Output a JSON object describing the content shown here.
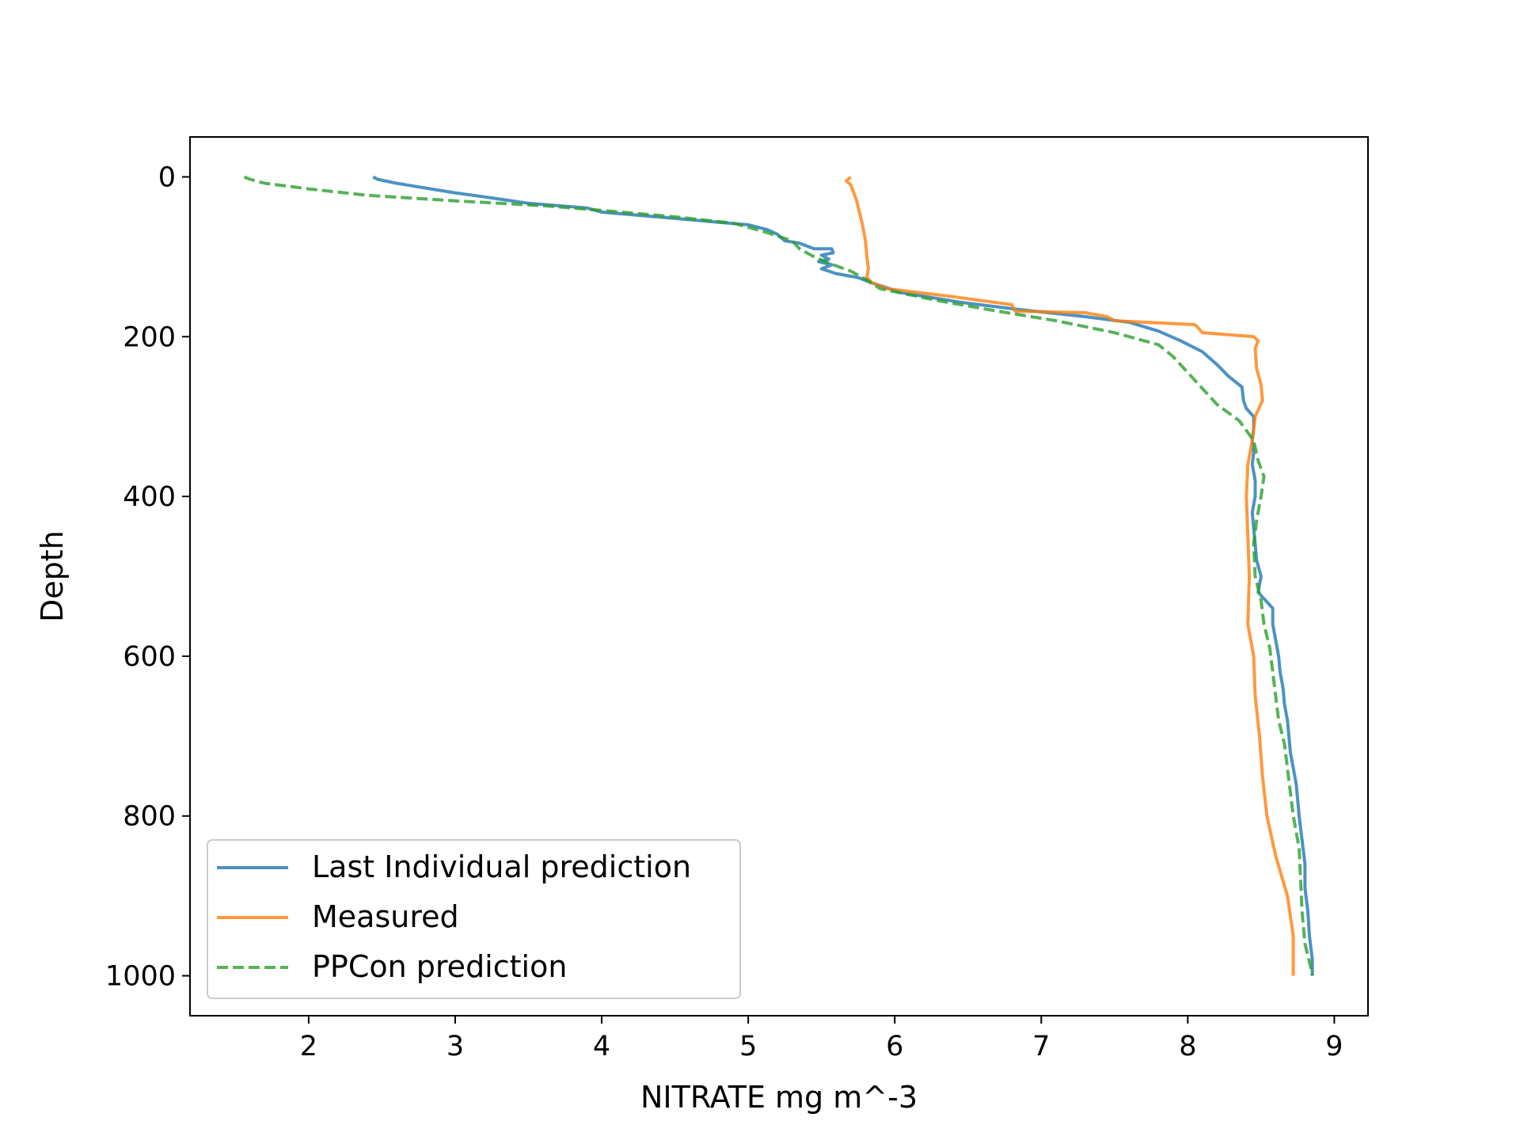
{
  "chart_data": {
    "type": "line",
    "title": "",
    "xlabel": "NITRATE mg m^-3",
    "ylabel": "Depth",
    "xlim": [
      1.19,
      9.23
    ],
    "ylim": [
      1050,
      -50
    ],
    "y_inverted": true,
    "xticks": [
      2,
      3,
      4,
      5,
      6,
      7,
      8,
      9
    ],
    "yticks": [
      0,
      200,
      400,
      600,
      800,
      1000
    ],
    "grid": false,
    "legend_position": "lower left",
    "series": [
      {
        "name": "Last Individual prediction",
        "color": "#1f77b4",
        "style": "solid",
        "points": [
          [
            2.44,
            0
          ],
          [
            2.47,
            3
          ],
          [
            2.6,
            8
          ],
          [
            2.8,
            14
          ],
          [
            3.0,
            20
          ],
          [
            3.2,
            25
          ],
          [
            3.5,
            33
          ],
          [
            3.9,
            39
          ],
          [
            4.0,
            44
          ],
          [
            4.5,
            52
          ],
          [
            5.0,
            60
          ],
          [
            5.13,
            66
          ],
          [
            5.2,
            72
          ],
          [
            5.25,
            80
          ],
          [
            5.35,
            83
          ],
          [
            5.45,
            90
          ],
          [
            5.57,
            90
          ],
          [
            5.58,
            95
          ],
          [
            5.5,
            98
          ],
          [
            5.55,
            103
          ],
          [
            5.48,
            106
          ],
          [
            5.57,
            110
          ],
          [
            5.5,
            115
          ],
          [
            5.6,
            121
          ],
          [
            5.75,
            126
          ],
          [
            5.85,
            133
          ],
          [
            6.05,
            145
          ],
          [
            6.45,
            157
          ],
          [
            6.85,
            166
          ],
          [
            7.3,
            175
          ],
          [
            7.6,
            182
          ],
          [
            7.8,
            193
          ],
          [
            7.95,
            205
          ],
          [
            8.1,
            219
          ],
          [
            8.2,
            235
          ],
          [
            8.28,
            250
          ],
          [
            8.37,
            263
          ],
          [
            8.38,
            280
          ],
          [
            8.4,
            290
          ],
          [
            8.45,
            300
          ],
          [
            8.45,
            315
          ],
          [
            8.44,
            330
          ],
          [
            8.45,
            345
          ],
          [
            8.44,
            360
          ],
          [
            8.46,
            380
          ],
          [
            8.46,
            400
          ],
          [
            8.44,
            420
          ],
          [
            8.45,
            440
          ],
          [
            8.46,
            460
          ],
          [
            8.47,
            480
          ],
          [
            8.5,
            500
          ],
          [
            8.48,
            520
          ],
          [
            8.58,
            540
          ],
          [
            8.58,
            560
          ],
          [
            8.6,
            580
          ],
          [
            8.62,
            600
          ],
          [
            8.63,
            620
          ],
          [
            8.65,
            640
          ],
          [
            8.66,
            660
          ],
          [
            8.68,
            680
          ],
          [
            8.69,
            700
          ],
          [
            8.7,
            720
          ],
          [
            8.72,
            740
          ],
          [
            8.74,
            760
          ],
          [
            8.75,
            780
          ],
          [
            8.76,
            800
          ],
          [
            8.78,
            830
          ],
          [
            8.8,
            860
          ],
          [
            8.8,
            890
          ],
          [
            8.82,
            920
          ],
          [
            8.83,
            950
          ],
          [
            8.85,
            980
          ],
          [
            8.85,
            1000
          ]
        ]
      },
      {
        "name": "Measured",
        "color": "#ff7f0e",
        "style": "solid",
        "points": [
          [
            5.7,
            0
          ],
          [
            5.67,
            5
          ],
          [
            5.7,
            10
          ],
          [
            5.72,
            20
          ],
          [
            5.74,
            30
          ],
          [
            5.76,
            45
          ],
          [
            5.78,
            60
          ],
          [
            5.8,
            80
          ],
          [
            5.81,
            100
          ],
          [
            5.82,
            115
          ],
          [
            5.81,
            125
          ],
          [
            5.84,
            132
          ],
          [
            5.95,
            140
          ],
          [
            6.4,
            150
          ],
          [
            6.8,
            160
          ],
          [
            6.82,
            168
          ],
          [
            7.3,
            170
          ],
          [
            7.45,
            175
          ],
          [
            7.5,
            180
          ],
          [
            8.05,
            185
          ],
          [
            8.1,
            195
          ],
          [
            8.45,
            200
          ],
          [
            8.48,
            205
          ],
          [
            8.46,
            215
          ],
          [
            8.47,
            240
          ],
          [
            8.5,
            260
          ],
          [
            8.51,
            280
          ],
          [
            8.46,
            300
          ],
          [
            8.44,
            330
          ],
          [
            8.41,
            360
          ],
          [
            8.4,
            400
          ],
          [
            8.41,
            450
          ],
          [
            8.42,
            500
          ],
          [
            8.41,
            560
          ],
          [
            8.45,
            600
          ],
          [
            8.46,
            650
          ],
          [
            8.49,
            700
          ],
          [
            8.51,
            750
          ],
          [
            8.54,
            800
          ],
          [
            8.6,
            850
          ],
          [
            8.68,
            900
          ],
          [
            8.72,
            950
          ],
          [
            8.72,
            1000
          ]
        ]
      },
      {
        "name": "PPCon prediction",
        "color": "#2ca02c",
        "style": "dashed",
        "points": [
          [
            1.56,
            0
          ],
          [
            1.6,
            3
          ],
          [
            1.7,
            8
          ],
          [
            2.0,
            15
          ],
          [
            2.4,
            23
          ],
          [
            3.0,
            30
          ],
          [
            3.6,
            36
          ],
          [
            4.0,
            42
          ],
          [
            4.5,
            50
          ],
          [
            4.9,
            58
          ],
          [
            5.1,
            68
          ],
          [
            5.3,
            80
          ],
          [
            5.35,
            90
          ],
          [
            5.45,
            100
          ],
          [
            5.55,
            108
          ],
          [
            5.7,
            118
          ],
          [
            5.8,
            128
          ],
          [
            5.9,
            140
          ],
          [
            6.3,
            155
          ],
          [
            6.7,
            168
          ],
          [
            7.1,
            180
          ],
          [
            7.5,
            195
          ],
          [
            7.8,
            210
          ],
          [
            7.9,
            225
          ],
          [
            8.0,
            245
          ],
          [
            8.1,
            265
          ],
          [
            8.2,
            285
          ],
          [
            8.35,
            305
          ],
          [
            8.45,
            330
          ],
          [
            8.48,
            355
          ],
          [
            8.52,
            375
          ],
          [
            8.5,
            400
          ],
          [
            8.47,
            430
          ],
          [
            8.45,
            460
          ],
          [
            8.46,
            500
          ],
          [
            8.5,
            530
          ],
          [
            8.52,
            560
          ],
          [
            8.56,
            590
          ],
          [
            8.58,
            620
          ],
          [
            8.6,
            650
          ],
          [
            8.62,
            680
          ],
          [
            8.66,
            710
          ],
          [
            8.68,
            740
          ],
          [
            8.7,
            770
          ],
          [
            8.72,
            800
          ],
          [
            8.76,
            840
          ],
          [
            8.77,
            880
          ],
          [
            8.78,
            920
          ],
          [
            8.8,
            960
          ],
          [
            8.84,
            990
          ],
          [
            8.85,
            1000
          ]
        ]
      }
    ]
  }
}
